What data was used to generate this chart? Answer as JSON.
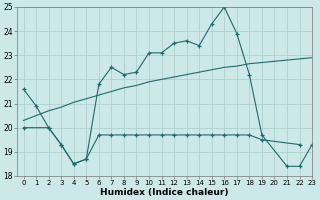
{
  "x": [
    0,
    1,
    2,
    3,
    4,
    5,
    6,
    7,
    8,
    9,
    10,
    11,
    12,
    13,
    14,
    15,
    16,
    17,
    18,
    19,
    20,
    21,
    22,
    23
  ],
  "series1": [
    21.6,
    20.9,
    20.0,
    19.3,
    18.5,
    18.7,
    21.8,
    22.5,
    22.2,
    22.3,
    23.1,
    23.1,
    23.5,
    23.6,
    23.4,
    24.3,
    25.0,
    23.9,
    22.2,
    19.7,
    null,
    18.4,
    18.4,
    19.3
  ],
  "series2": [
    20.0,
    null,
    20.0,
    19.3,
    18.5,
    18.7,
    19.7,
    19.7,
    19.7,
    19.7,
    19.7,
    19.7,
    19.7,
    19.7,
    19.7,
    19.7,
    19.7,
    19.7,
    19.7,
    19.5,
    null,
    null,
    19.3,
    null
  ],
  "series3": [
    20.0,
    null,
    20.0,
    null,
    null,
    null,
    null,
    null,
    null,
    null,
    null,
    null,
    null,
    null,
    null,
    null,
    null,
    null,
    null,
    null,
    null,
    null,
    null,
    null
  ],
  "series4": [
    20.3,
    20.5,
    20.7,
    20.85,
    21.05,
    21.2,
    21.35,
    21.5,
    21.65,
    21.75,
    21.9,
    22.0,
    22.1,
    22.2,
    22.3,
    22.4,
    22.5,
    22.55,
    22.65,
    22.7,
    22.75,
    22.8,
    22.85,
    22.9
  ],
  "bg_color": "#cce8e8",
  "grid_color": "#aacccc",
  "line_color": "#1e6b6b",
  "xlabel": "Humidex (Indice chaleur)",
  "ylim": [
    18,
    25
  ],
  "xlim": [
    -0.5,
    23
  ],
  "yticks": [
    18,
    19,
    20,
    21,
    22,
    23,
    24,
    25
  ],
  "xticks": [
    0,
    1,
    2,
    3,
    4,
    5,
    6,
    7,
    8,
    9,
    10,
    11,
    12,
    13,
    14,
    15,
    16,
    17,
    18,
    19,
    20,
    21,
    22,
    23
  ]
}
